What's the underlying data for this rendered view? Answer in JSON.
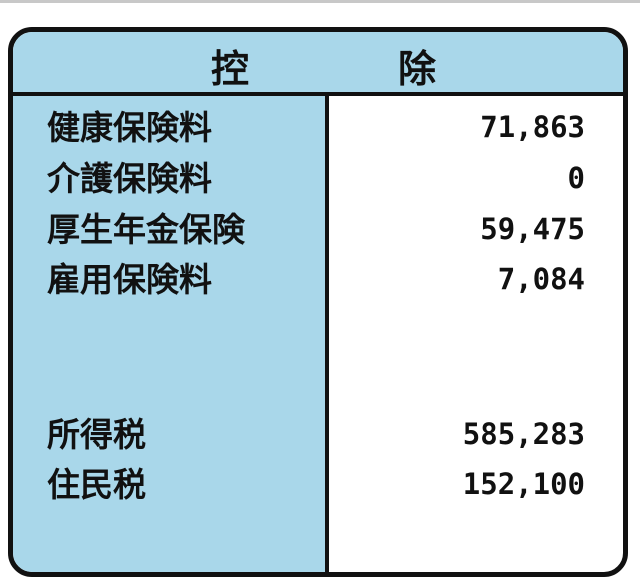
{
  "header": {
    "left": "控",
    "right": "除"
  },
  "colors": {
    "label_bg": "#a9d7ea",
    "border": "#111111"
  },
  "rows": [
    {
      "label": "健康保険料",
      "value": "71,863"
    },
    {
      "label": "介護保険料",
      "value": "0"
    },
    {
      "label": "厚生年金保険",
      "value": "59,475"
    },
    {
      "label": "雇用保険料",
      "value": "7,084"
    },
    {
      "label": "所得税",
      "value": "585,283"
    },
    {
      "label": "住民税",
      "value": "152,100"
    }
  ]
}
